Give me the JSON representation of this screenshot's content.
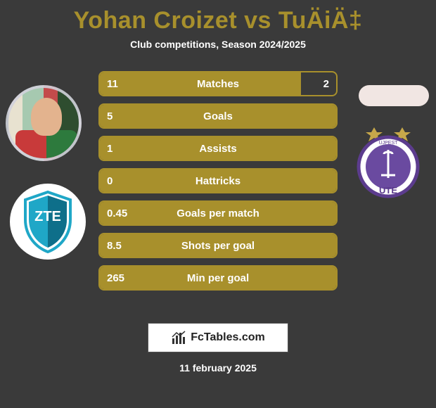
{
  "title_color": "#a8902c",
  "player_a": "Yohan Croizet",
  "vs": "vs",
  "player_b": "TuÄiÄ‡",
  "subtitle": "Club competitions, Season 2024/2025",
  "bar_color": "#a8902c",
  "bars": [
    {
      "label": "Matches",
      "left": "11",
      "right": "2",
      "fill_ratio": 0.85
    },
    {
      "label": "Goals",
      "left": "5",
      "right": "",
      "fill_ratio": 1.0
    },
    {
      "label": "Assists",
      "left": "1",
      "right": "",
      "fill_ratio": 1.0
    },
    {
      "label": "Hattricks",
      "left": "0",
      "right": "",
      "fill_ratio": 1.0
    },
    {
      "label": "Goals per match",
      "left": "0.45",
      "right": "",
      "fill_ratio": 1.0
    },
    {
      "label": "Shots per goal",
      "left": "8.5",
      "right": "",
      "fill_ratio": 1.0
    },
    {
      "label": "Min per goal",
      "left": "265",
      "right": "",
      "fill_ratio": 1.0
    }
  ],
  "footer_brand": "FcTables.com",
  "date": "11 february 2025",
  "crest_left": {
    "primary": "#1fa7c7",
    "secondary": "#ffffff",
    "accent": "#0e6f8a"
  },
  "crest_right": {
    "circle": "#ffffff",
    "ring": "#5c3c8e",
    "fill": "#6a4aa0",
    "stars": "#c7a84a",
    "text": "UTE"
  }
}
